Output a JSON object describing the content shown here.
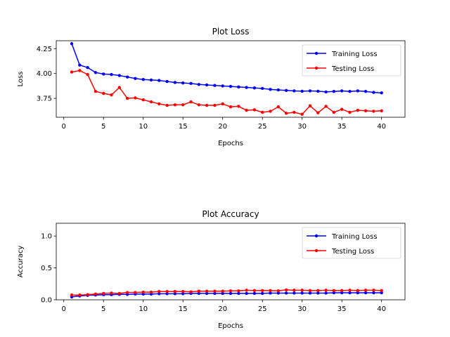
{
  "chart_data": [
    {
      "type": "line",
      "title": "Plot Loss",
      "xlabel": "Epochs",
      "ylabel": "Loss",
      "xlim": [
        -0.95,
        42.95
      ],
      "ylim": [
        3.56,
        4.33
      ],
      "xticks": [
        0,
        5,
        10,
        15,
        20,
        25,
        30,
        35,
        40
      ],
      "yticks": [
        3.75,
        4.0,
        4.25
      ],
      "ytick_labels": [
        "3.75",
        "4.00",
        "4.25"
      ],
      "grid": false,
      "legend": "top-right",
      "x": [
        1,
        2,
        3,
        4,
        5,
        6,
        7,
        8,
        9,
        10,
        11,
        12,
        13,
        14,
        15,
        16,
        17,
        18,
        19,
        20,
        21,
        22,
        23,
        24,
        25,
        26,
        27,
        28,
        29,
        30,
        31,
        32,
        33,
        34,
        35,
        36,
        37,
        38,
        39,
        40
      ],
      "series": [
        {
          "name": "Training Loss",
          "color": "#0000ff",
          "values": [
            4.3,
            4.085,
            4.06,
            4.01,
            3.995,
            3.99,
            3.98,
            3.965,
            3.95,
            3.94,
            3.935,
            3.93,
            3.92,
            3.91,
            3.905,
            3.9,
            3.89,
            3.885,
            3.88,
            3.875,
            3.87,
            3.865,
            3.86,
            3.855,
            3.85,
            3.84,
            3.835,
            3.83,
            3.825,
            3.822,
            3.825,
            3.822,
            3.815,
            3.82,
            3.825,
            3.82,
            3.825,
            3.82,
            3.81,
            3.805
          ]
        },
        {
          "name": "Testing Loss",
          "color": "#ff0000",
          "values": [
            4.015,
            4.03,
            3.99,
            3.82,
            3.8,
            3.785,
            3.86,
            3.75,
            3.755,
            3.735,
            3.715,
            3.695,
            3.68,
            3.685,
            3.685,
            3.715,
            3.685,
            3.68,
            3.68,
            3.695,
            3.665,
            3.67,
            3.63,
            3.635,
            3.61,
            3.62,
            3.665,
            3.6,
            3.61,
            3.59,
            3.675,
            3.605,
            3.67,
            3.61,
            3.64,
            3.61,
            3.63,
            3.625,
            3.62,
            3.625
          ]
        }
      ]
    },
    {
      "type": "line",
      "title": "Plot Accuracy",
      "xlabel": "Epochs",
      "ylabel": "Accuracy",
      "xlim": [
        -0.95,
        42.95
      ],
      "ylim": [
        0,
        1.2
      ],
      "xticks": [
        0,
        5,
        10,
        15,
        20,
        25,
        30,
        35,
        40
      ],
      "yticks": [
        0.0,
        0.5,
        1.0
      ],
      "ytick_labels": [
        "0.0",
        "0.5",
        "1.0"
      ],
      "grid": false,
      "legend": "top-right",
      "x": [
        1,
        2,
        3,
        4,
        5,
        6,
        7,
        8,
        9,
        10,
        11,
        12,
        13,
        14,
        15,
        16,
        17,
        18,
        19,
        20,
        21,
        22,
        23,
        24,
        25,
        26,
        27,
        28,
        29,
        30,
        31,
        32,
        33,
        34,
        35,
        36,
        37,
        38,
        39,
        40
      ],
      "series": [
        {
          "name": "Training Loss",
          "color": "#0000ff",
          "values": [
            0.045,
            0.06,
            0.07,
            0.075,
            0.08,
            0.08,
            0.085,
            0.085,
            0.09,
            0.09,
            0.09,
            0.095,
            0.095,
            0.095,
            0.095,
            0.1,
            0.1,
            0.1,
            0.1,
            0.1,
            0.1,
            0.1,
            0.1,
            0.1,
            0.1,
            0.105,
            0.105,
            0.105,
            0.105,
            0.105,
            0.105,
            0.105,
            0.105,
            0.11,
            0.11,
            0.11,
            0.11,
            0.11,
            0.11,
            0.11
          ]
        },
        {
          "name": "Testing Loss",
          "color": "#ff0000",
          "values": [
            0.075,
            0.075,
            0.08,
            0.09,
            0.1,
            0.105,
            0.1,
            0.115,
            0.115,
            0.12,
            0.12,
            0.13,
            0.13,
            0.13,
            0.13,
            0.125,
            0.135,
            0.135,
            0.135,
            0.135,
            0.14,
            0.14,
            0.15,
            0.145,
            0.145,
            0.145,
            0.14,
            0.155,
            0.15,
            0.15,
            0.145,
            0.145,
            0.15,
            0.145,
            0.145,
            0.15,
            0.145,
            0.15,
            0.15,
            0.145
          ]
        }
      ]
    }
  ]
}
